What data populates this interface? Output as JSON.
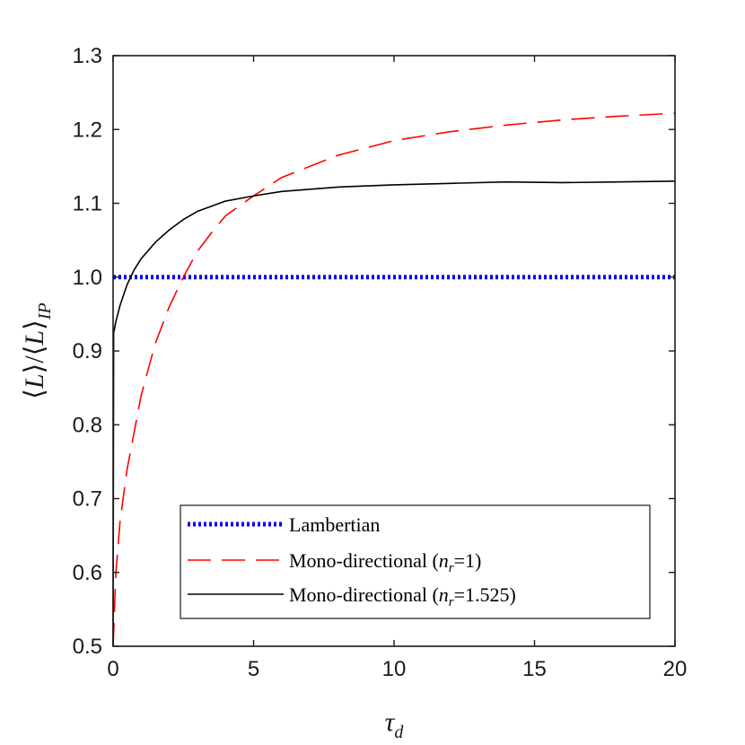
{
  "chart_data": {
    "type": "line",
    "title": "",
    "xlabel": "τ_d",
    "ylabel": "⟨L⟩/⟨L⟩_IP",
    "xlim": [
      0,
      20
    ],
    "ylim": [
      0.5,
      1.3
    ],
    "xticks": [
      0,
      5,
      10,
      15,
      20
    ],
    "xtick_labels": [
      "0",
      "5",
      "10",
      "15",
      "20"
    ],
    "yticks": [
      0.5,
      0.6,
      0.7,
      0.8,
      0.9,
      1.0,
      1.1,
      1.2,
      1.3
    ],
    "ytick_labels": [
      "0.5",
      "0.6",
      "0.7",
      "0.8",
      "0.9",
      "1.0",
      "1.1",
      "1.2",
      "1.3"
    ],
    "grid": false,
    "legend_position": "bottom-right",
    "series": [
      {
        "name": "Lambertian",
        "legend_label": "Lambertian",
        "color": "#0000ff",
        "style": "dotted",
        "x": [
          0,
          20
        ],
        "y": [
          1.0,
          1.0
        ]
      },
      {
        "name": "Mono-directional (n_r=1)",
        "legend_label": "Mono-directional (",
        "legend_var": "n",
        "legend_sub": "r",
        "legend_value": "=1)",
        "color": "#ff0000",
        "style": "dashed",
        "x": [
          0,
          0.1,
          0.25,
          0.5,
          0.75,
          1,
          1.5,
          2,
          2.5,
          3,
          3.5,
          4,
          5,
          6,
          8,
          10,
          12,
          14,
          16,
          18,
          20
        ],
        "y": [
          0.5,
          0.6,
          0.67,
          0.74,
          0.79,
          0.84,
          0.91,
          0.96,
          1.0,
          1.035,
          1.06,
          1.083,
          1.11,
          1.135,
          1.165,
          1.185,
          1.197,
          1.206,
          1.213,
          1.218,
          1.222
        ]
      },
      {
        "name": "Mono-directional (n_r=1.525)",
        "legend_label": "Mono-directional (",
        "legend_var": "n",
        "legend_sub": "r",
        "legend_value": "=1.525)",
        "color": "#000000",
        "style": "solid",
        "x": [
          0,
          0.02,
          0.05,
          0.1,
          0.25,
          0.5,
          0.75,
          1,
          1.5,
          2,
          2.5,
          3,
          4,
          5,
          6,
          8,
          10,
          12,
          14,
          16,
          18,
          20
        ],
        "y": [
          0.5,
          0.925,
          0.93,
          0.94,
          0.962,
          0.99,
          1.01,
          1.025,
          1.047,
          1.064,
          1.078,
          1.089,
          1.103,
          1.11,
          1.116,
          1.122,
          1.125,
          1.127,
          1.129,
          1.128,
          1.129,
          1.13
        ]
      }
    ]
  }
}
